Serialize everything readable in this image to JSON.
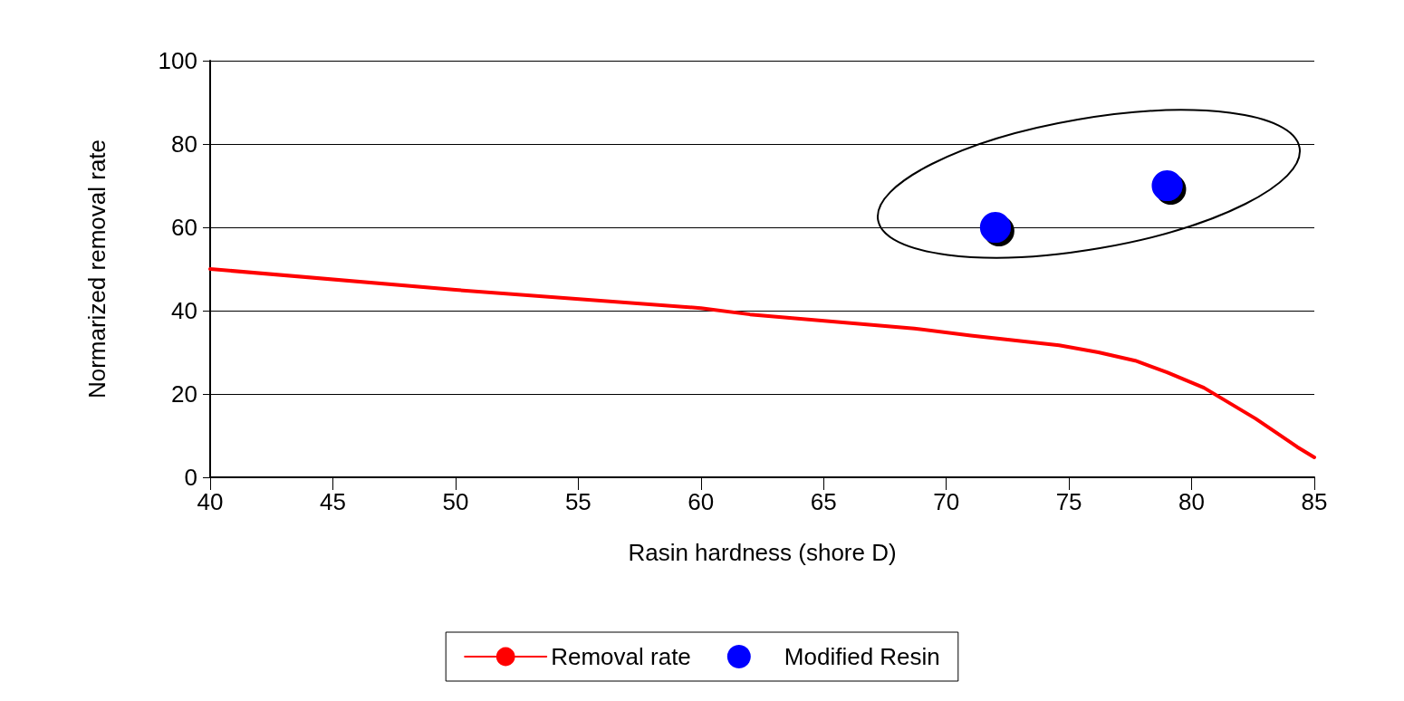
{
  "chart_data": {
    "type": "line",
    "xlabel": "Rasin hardness (shore D)",
    "ylabel": "Normarized removal rate",
    "xlim": [
      40,
      85
    ],
    "xticks": [
      40,
      45,
      50,
      55,
      60,
      65,
      70,
      75,
      80,
      85
    ],
    "ylim": [
      0,
      100
    ],
    "yticks": [
      0,
      20,
      40,
      60,
      80,
      100
    ],
    "grid": "y",
    "legend": "bottom",
    "series": [
      {
        "name": "Removal rate",
        "color": "#ff0000",
        "marker": "none",
        "line_style": "solid",
        "x": [
          40,
          50,
          60,
          62,
          68.7,
          71,
          74.6,
          76.2,
          77.7,
          79,
          80.5,
          82.6,
          83.5,
          84.3,
          85
        ],
        "values": [
          50,
          45,
          40.6,
          39.1,
          35.7,
          34,
          31.7,
          30,
          28,
          25.2,
          21.5,
          14.1,
          10.5,
          7.3,
          4.8
        ]
      },
      {
        "name": "Modified Resin",
        "type": "scatter",
        "color": "#0000ff",
        "marker": "circle",
        "x": [
          72,
          79
        ],
        "values": [
          60,
          70
        ]
      }
    ]
  }
}
